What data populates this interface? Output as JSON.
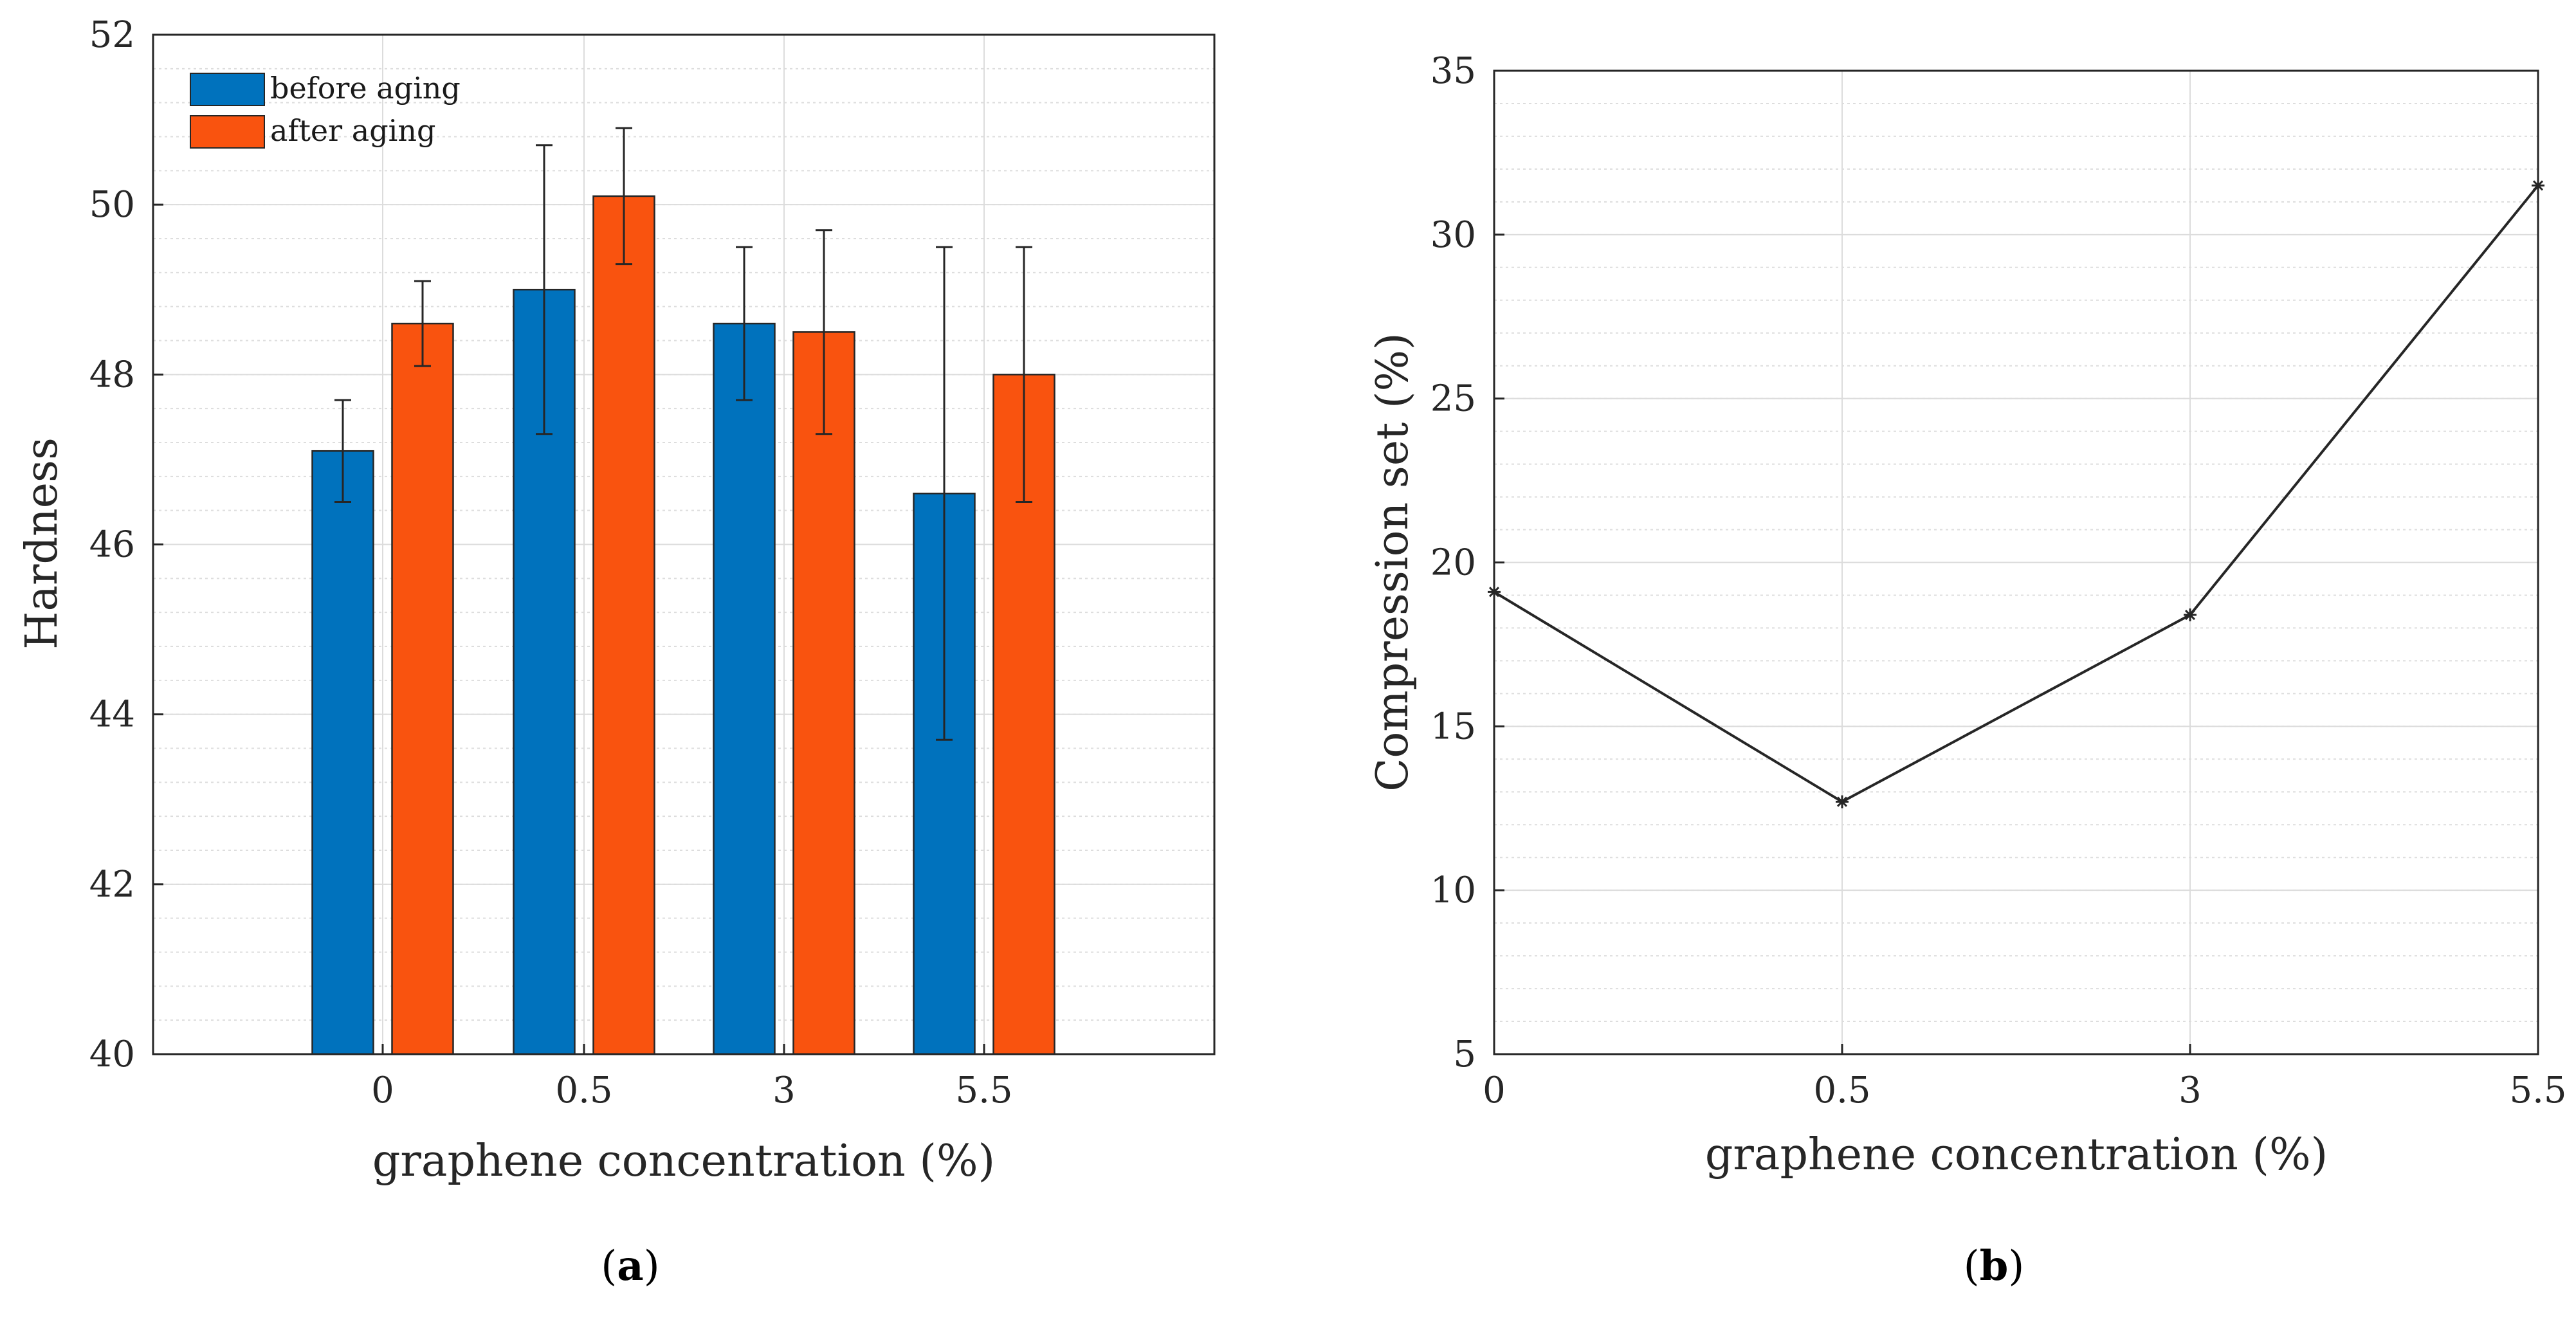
{
  "colors": {
    "before": "#0072BD",
    "after": "#F9530F",
    "line": "#262626",
    "axis": "#262626",
    "grid_major": "#dcdcdc",
    "grid_minor": "#dddddd"
  },
  "chart_data": [
    {
      "type": "bar",
      "panel_label": "a",
      "categories": [
        "0",
        "0.5",
        "3",
        "5.5"
      ],
      "series": [
        {
          "name": "before aging",
          "values": [
            47.1,
            49.0,
            48.6,
            46.6
          ],
          "error_low": [
            46.5,
            47.3,
            47.7,
            43.7
          ],
          "error_high": [
            47.7,
            50.7,
            49.5,
            49.5
          ]
        },
        {
          "name": "after aging",
          "values": [
            48.6,
            50.1,
            48.5,
            48.0
          ],
          "error_low": [
            48.1,
            49.3,
            47.3,
            46.5
          ],
          "error_high": [
            49.1,
            50.9,
            49.7,
            49.5
          ]
        }
      ],
      "xlabel": "graphene concentration (%)",
      "ylabel": "Hardness",
      "ylim": [
        40,
        52
      ],
      "yticks": [
        "40",
        "42",
        "44",
        "46",
        "48",
        "50",
        "52"
      ],
      "grid": "major and minor",
      "legend_position": "top-left"
    },
    {
      "type": "line",
      "panel_label": "b",
      "categories": [
        "0",
        "0.5",
        "3",
        "5.5"
      ],
      "series": [
        {
          "name": "Compression set",
          "values": [
            19.1,
            12.7,
            18.4,
            31.5
          ]
        }
      ],
      "xlabel": "graphene concentration (%)",
      "ylabel": "Compression set (%)",
      "ylim": [
        5,
        35
      ],
      "yticks": [
        "5",
        "10",
        "15",
        "20",
        "25",
        "30",
        "35"
      ],
      "grid": "major and minor",
      "marker": "asterisk"
    }
  ],
  "captions": {
    "a_open": "(",
    "a_letter": "a",
    "a_close": ")",
    "b_open": "(",
    "b_letter": "b",
    "b_close": ")"
  }
}
